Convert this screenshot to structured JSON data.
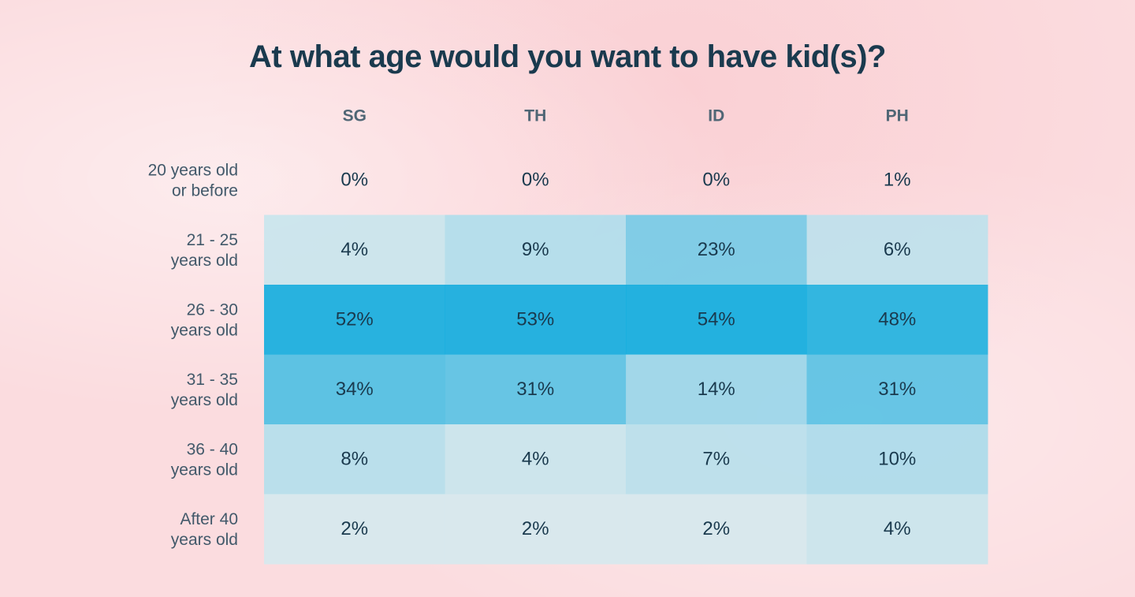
{
  "chart_data": {
    "type": "heatmap",
    "title": "At what age would you want to have kid(s)?",
    "columns": [
      "SG",
      "TH",
      "ID",
      "PH"
    ],
    "rows": [
      {
        "label": [
          "20 years old",
          "or before"
        ],
        "values": [
          0,
          0,
          0,
          1
        ]
      },
      {
        "label": [
          "21 - 25",
          "years old"
        ],
        "values": [
          4,
          9,
          23,
          6
        ]
      },
      {
        "label": [
          "26 - 30",
          "years old"
        ],
        "values": [
          52,
          53,
          54,
          48
        ]
      },
      {
        "label": [
          "31 - 35",
          "years old"
        ],
        "values": [
          34,
          31,
          14,
          31
        ]
      },
      {
        "label": [
          "36 - 40",
          "years old"
        ],
        "values": [
          8,
          4,
          7,
          10
        ]
      },
      {
        "label": [
          "After 40",
          "years old"
        ],
        "values": [
          2,
          2,
          2,
          4
        ]
      }
    ],
    "value_suffix": "%",
    "color_low": "#e8eeef",
    "color_high": "#10acde"
  }
}
